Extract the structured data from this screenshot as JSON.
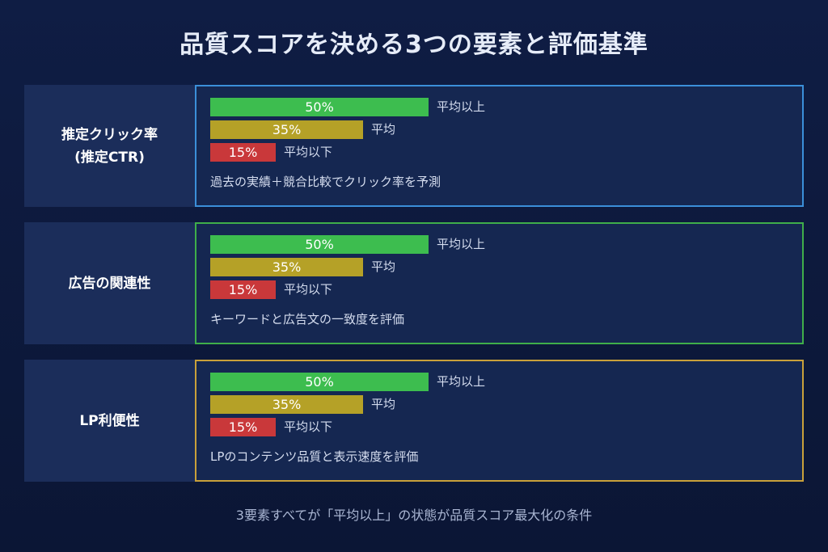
{
  "title": "品質スコアを決める3つの要素と評価基準",
  "colors": {
    "above_average": "#3dbd4f",
    "average": "#b5a127",
    "below_average": "#c9383a",
    "panel_border_ctr": "#3b8fd9",
    "panel_border_relevance": "#3fae4a",
    "panel_border_lp": "#c9a03a"
  },
  "legend_levels": {
    "above_average": "平均以上",
    "average": "平均",
    "below_average": "平均以下"
  },
  "chart_data": [
    {
      "type": "bar",
      "factor_lines": [
        "推定クリック率",
        "(推定CTR)"
      ],
      "categories": [
        "平均以上",
        "平均",
        "平均以下"
      ],
      "values": [
        50,
        35,
        15
      ],
      "value_labels": [
        "50%",
        "35%",
        "15%"
      ],
      "description": "過去の実績＋競合比較でクリック率を予測"
    },
    {
      "type": "bar",
      "factor_lines": [
        "広告の関連性"
      ],
      "categories": [
        "平均以上",
        "平均",
        "平均以下"
      ],
      "values": [
        50,
        35,
        15
      ],
      "value_labels": [
        "50%",
        "35%",
        "15%"
      ],
      "description": "キーワードと広告文の一致度を評価"
    },
    {
      "type": "bar",
      "factor_lines": [
        "LP利便性"
      ],
      "categories": [
        "平均以上",
        "平均",
        "平均以下"
      ],
      "values": [
        50,
        35,
        15
      ],
      "value_labels": [
        "50%",
        "35%",
        "15%"
      ],
      "description": "LPのコンテンツ品質と表示速度を評価"
    }
  ],
  "footer": "3要素すべてが「平均以上」の状態が品質スコア最大化の条件"
}
